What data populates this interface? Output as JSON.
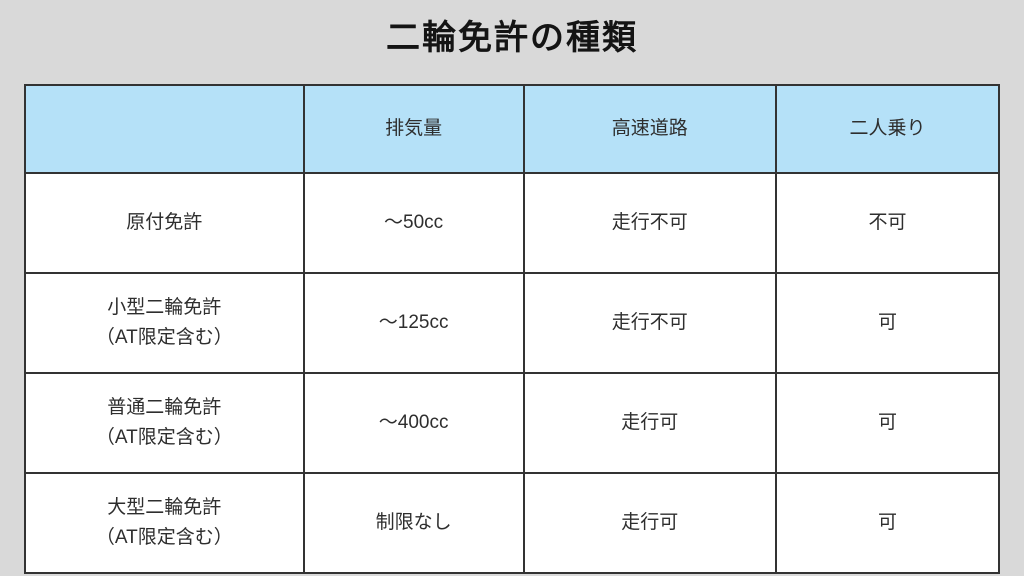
{
  "page": {
    "title": "二輪免許の種類",
    "background_color": "#d9d9d9",
    "header_bg_color": "#b5e1f8",
    "cell_bg_color": "#ffffff",
    "border_color": "#333333",
    "text_color": "#2e2e2e"
  },
  "table": {
    "headers": [
      "",
      "排気量",
      "高速道路",
      "二人乗り"
    ],
    "rows": [
      {
        "cells": [
          "原付免許",
          "〜50cc",
          "走行不可",
          "不可"
        ]
      },
      {
        "cells": [
          "小型二輪免許\n（AT限定含む）",
          "〜125cc",
          "走行不可",
          "可"
        ]
      },
      {
        "cells": [
          "普通二輪免許\n（AT限定含む）",
          "〜400cc",
          "走行可",
          "可"
        ]
      },
      {
        "cells": [
          "大型二輪免許\n（AT限定含む）",
          "制限なし",
          "走行可",
          "可"
        ]
      }
    ]
  },
  "chart_data": {
    "type": "table",
    "title": "二輪免許の種類",
    "columns": [
      "",
      "排気量",
      "高速道路",
      "二人乗り"
    ],
    "rows": [
      [
        "原付免許",
        "〜50cc",
        "走行不可",
        "不可"
      ],
      [
        "小型二輪免許（AT限定含む）",
        "〜125cc",
        "走行不可",
        "可"
      ],
      [
        "普通二輪免許（AT限定含む）",
        "〜400cc",
        "走行可",
        "可"
      ],
      [
        "大型二輪免許（AT限定含む）",
        "制限なし",
        "走行可",
        "可"
      ]
    ],
    "layout_hints": {
      "header_fill": "#b5e1f8",
      "body_fill": "#ffffff",
      "border": "2px solid #333333",
      "page_background": "#d9d9d9",
      "text_align": "center"
    }
  }
}
